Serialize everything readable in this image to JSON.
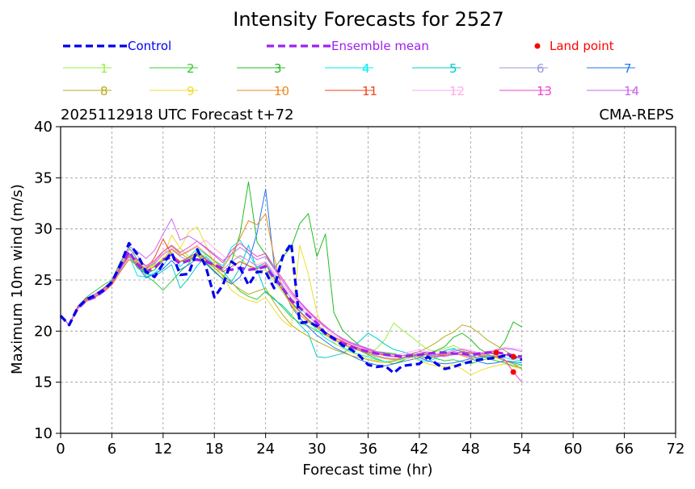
{
  "chart_data": {
    "type": "line",
    "title": "Intensity Forecasts for 2527",
    "subtitle_left": "2025112918 UTC Forecast t+72",
    "subtitle_right": "CMA-REPS",
    "xlabel": "Forecast time (hr)",
    "ylabel": "Maximum 10m wind (m/s)",
    "xlim": [
      0,
      72
    ],
    "ylim": [
      10,
      40
    ],
    "xticks": [
      0,
      6,
      12,
      18,
      24,
      30,
      36,
      42,
      48,
      54,
      60,
      66,
      72
    ],
    "yticks": [
      10,
      15,
      20,
      25,
      30,
      35,
      40
    ],
    "grid": true,
    "legend": {
      "control_label": "Control",
      "mean_label": "Ensemble mean",
      "land_label": "Land point"
    },
    "colors": {
      "control": "#0000ee",
      "mean": "#a020f0",
      "land": "#ff0000"
    },
    "control": {
      "x": [
        0,
        1,
        2,
        3,
        4,
        5,
        6,
        7,
        8,
        9,
        10,
        11,
        12,
        13,
        14,
        15,
        16,
        17,
        18,
        19,
        20,
        21,
        22,
        23,
        24,
        25,
        26,
        27,
        28,
        29,
        30,
        31,
        32,
        33,
        34,
        35,
        36,
        37,
        38,
        39,
        40,
        41,
        42,
        43,
        44,
        45,
        46,
        47,
        48,
        49,
        50,
        51,
        52,
        53,
        54
      ],
      "y": [
        21.5,
        20.6,
        22.3,
        23.1,
        23.5,
        24.0,
        24.8,
        26.5,
        28.6,
        27.5,
        25.8,
        25.3,
        26.6,
        27.7,
        25.5,
        25.6,
        28.0,
        26.3,
        23.3,
        24.5,
        26.8,
        26.2,
        24.5,
        25.8,
        25.8,
        24.2,
        27.3,
        28.6,
        20.8,
        20.9,
        20.5,
        19.8,
        19.3,
        18.6,
        18.2,
        17.6,
        16.7,
        16.5,
        16.6,
        15.9,
        16.6,
        16.7,
        16.8,
        17.5,
        16.8,
        16.3,
        16.5,
        16.8,
        17.0,
        17.2,
        17.3,
        17.4,
        17.6,
        17.5,
        17.2
      ]
    },
    "mean": {
      "x": [
        0,
        1,
        2,
        3,
        4,
        5,
        6,
        7,
        8,
        9,
        10,
        11,
        12,
        13,
        14,
        15,
        16,
        17,
        18,
        19,
        20,
        21,
        22,
        23,
        24,
        25,
        26,
        27,
        28,
        29,
        30,
        31,
        32,
        33,
        34,
        35,
        36,
        37,
        38,
        39,
        40,
        41,
        42,
        43,
        44,
        45,
        46,
        47,
        48,
        49,
        50,
        51,
        52,
        53,
        54
      ],
      "y": [
        21.5,
        20.6,
        22.2,
        23.0,
        23.3,
        23.9,
        24.8,
        26.3,
        27.8,
        26.5,
        25.8,
        26.2,
        27.0,
        27.2,
        26.6,
        26.9,
        27.0,
        26.8,
        26.5,
        26.1,
        26.0,
        26.2,
        26.0,
        26.1,
        26.3,
        25.2,
        24.2,
        23.0,
        22.3,
        21.5,
        20.8,
        19.8,
        19.2,
        18.8,
        18.5,
        18.2,
        18.0,
        17.8,
        17.7,
        17.6,
        17.5,
        17.6,
        17.7,
        17.8,
        17.9,
        17.9,
        17.8,
        17.8,
        17.7,
        17.8,
        17.9,
        17.9,
        17.8,
        17.6,
        17.5
      ]
    },
    "members": [
      {
        "name": "1",
        "color": "#99ee44",
        "y": [
          21.5,
          20.6,
          22.3,
          23.0,
          23.6,
          24.2,
          24.9,
          26.4,
          27.6,
          26.8,
          26.1,
          26.5,
          27.0,
          27.7,
          28.1,
          27.3,
          26.9,
          27.5,
          26.8,
          26.2,
          27.6,
          27.1,
          26.4,
          25.8,
          26.0,
          24.9,
          23.8,
          22.6,
          21.9,
          21.0,
          20.4,
          19.7,
          19.1,
          18.7,
          18.3,
          18.1,
          17.8,
          18.3,
          19.2,
          20.8,
          20.1,
          19.5,
          18.8,
          18.2,
          18.0,
          18.3,
          18.6,
          18.2,
          17.5,
          17.2,
          17.6,
          17.4,
          17.1,
          16.8,
          16.6
        ]
      },
      {
        "name": "2",
        "color": "#33cc33",
        "y": [
          21.5,
          20.6,
          22.4,
          23.3,
          23.9,
          24.5,
          25.0,
          26.8,
          28.2,
          27.0,
          25.4,
          24.8,
          24.0,
          24.9,
          25.8,
          26.6,
          27.9,
          27.1,
          26.2,
          25.4,
          24.8,
          23.9,
          23.4,
          23.1,
          23.9,
          23.2,
          22.3,
          21.4,
          20.8,
          20.5,
          20.0,
          19.6,
          19.2,
          18.8,
          18.4,
          18.1,
          17.7,
          17.3,
          17.0,
          16.8,
          17.1,
          17.5,
          17.8,
          17.6,
          17.3,
          17.1,
          17.2,
          17.0,
          16.8,
          17.1,
          17.3,
          17.1,
          16.9,
          16.6,
          16.4
        ]
      },
      {
        "name": "3",
        "color": "#22bb22",
        "y": [
          21.5,
          20.6,
          22.2,
          23.0,
          23.5,
          24.0,
          24.6,
          26.0,
          27.4,
          26.2,
          25.6,
          26.0,
          26.9,
          27.5,
          26.8,
          27.0,
          27.4,
          26.7,
          25.9,
          25.1,
          26.8,
          29.5,
          34.6,
          28.7,
          27.5,
          26.1,
          27.3,
          28.2,
          30.5,
          31.5,
          27.3,
          29.5,
          21.8,
          20.1,
          19.3,
          18.6,
          18.3,
          18.0,
          17.9,
          17.8,
          17.6,
          17.7,
          17.5,
          17.8,
          18.1,
          18.5,
          19.4,
          19.8,
          19.2,
          18.3,
          17.8,
          17.9,
          19.0,
          20.9,
          20.4
        ]
      },
      {
        "name": "4",
        "color": "#00eeee",
        "y": [
          21.5,
          20.6,
          22.3,
          23.1,
          23.4,
          24.1,
          24.7,
          26.1,
          27.4,
          25.4,
          25.3,
          25.7,
          26.4,
          27.6,
          26.3,
          27.2,
          28.1,
          27.5,
          26.9,
          26.4,
          28.2,
          28.9,
          27.6,
          26.2,
          26.7,
          25.3,
          24.1,
          22.9,
          22.0,
          21.1,
          20.1,
          19.3,
          18.8,
          18.4,
          18.0,
          17.7,
          17.5,
          17.2,
          17.0,
          17.1,
          17.3,
          17.6,
          17.2,
          17.0,
          17.4,
          17.8,
          18.2,
          18.0,
          17.4,
          17.3,
          17.5,
          17.7,
          17.4,
          17.2,
          17.1
        ]
      },
      {
        "name": "5",
        "color": "#00cccc",
        "y": [
          21.5,
          20.6,
          22.2,
          22.9,
          23.3,
          23.8,
          24.5,
          25.9,
          27.2,
          26.5,
          25.6,
          25.4,
          25.9,
          26.5,
          24.2,
          25.2,
          26.4,
          27.3,
          26.5,
          25.9,
          24.8,
          26.2,
          28.4,
          26.0,
          23.8,
          23.1,
          22.5,
          21.6,
          20.6,
          19.8,
          17.5,
          17.4,
          17.6,
          17.8,
          18.4,
          19.0,
          19.8,
          19.3,
          18.7,
          18.2,
          18.0,
          17.7,
          17.6,
          17.4,
          17.7,
          18.1,
          18.3,
          18.0,
          17.6,
          17.4,
          17.6,
          17.5,
          17.1,
          16.9,
          16.7
        ]
      },
      {
        "name": "6",
        "color": "#9999dd",
        "y": [
          21.5,
          20.6,
          22.3,
          23.0,
          23.5,
          24.1,
          24.7,
          26.4,
          28.0,
          27.4,
          26.2,
          26.6,
          27.5,
          28.0,
          27.3,
          26.9,
          27.6,
          27.1,
          26.5,
          26.0,
          26.8,
          27.4,
          26.9,
          26.3,
          26.7,
          25.5,
          24.4,
          23.2,
          22.3,
          21.5,
          20.7,
          19.9,
          19.2,
          18.8,
          18.4,
          18.2,
          17.9,
          17.6,
          17.4,
          17.3,
          17.2,
          17.4,
          17.6,
          17.8,
          17.6,
          17.5,
          17.7,
          17.9,
          17.8,
          17.6,
          17.8,
          18.1,
          17.7,
          17.4,
          17.3
        ]
      },
      {
        "name": "7",
        "color": "#2277ee",
        "y": [
          21.5,
          20.6,
          22.4,
          23.2,
          23.6,
          24.2,
          24.8,
          26.2,
          27.6,
          26.4,
          25.2,
          25.6,
          26.1,
          26.9,
          26.0,
          26.5,
          27.1,
          26.6,
          25.8,
          25.1,
          24.6,
          25.3,
          26.8,
          29.6,
          33.9,
          26.5,
          24.3,
          22.4,
          21.3,
          20.4,
          19.6,
          19.0,
          18.4,
          18.0,
          17.6,
          17.2,
          16.9,
          16.7,
          16.6,
          16.8,
          17.0,
          17.2,
          17.4,
          17.1,
          16.9,
          16.8,
          16.9,
          17.1,
          17.3,
          17.0,
          16.8,
          16.9,
          17.1,
          17.0,
          16.9
        ]
      },
      {
        "name": "8",
        "color": "#bbaa22",
        "y": [
          21.5,
          20.6,
          22.2,
          23.1,
          23.4,
          23.9,
          24.6,
          26.3,
          27.5,
          26.9,
          26.3,
          26.7,
          27.8,
          28.3,
          27.6,
          27.1,
          27.5,
          26.8,
          26.2,
          25.5,
          24.7,
          24.1,
          23.6,
          23.9,
          24.2,
          22.8,
          21.6,
          20.6,
          20.0,
          19.5,
          19.0,
          18.6,
          18.2,
          17.9,
          17.6,
          17.4,
          17.2,
          17.0,
          16.9,
          17.1,
          17.4,
          17.7,
          18.0,
          18.4,
          18.9,
          19.5,
          19.9,
          20.6,
          20.4,
          19.8,
          19.1,
          18.6,
          18.1,
          17.6,
          17.2
        ]
      },
      {
        "name": "9",
        "color": "#eedd33",
        "y": [
          21.5,
          20.6,
          22.3,
          23.0,
          23.5,
          24.0,
          24.7,
          26.1,
          27.3,
          26.6,
          26.0,
          26.4,
          27.2,
          29.4,
          28.1,
          29.7,
          30.2,
          28.4,
          26.6,
          25.3,
          24.0,
          23.4,
          23.0,
          22.8,
          23.3,
          22.1,
          21.0,
          20.4,
          28.4,
          25.6,
          21.8,
          19.7,
          18.9,
          18.3,
          17.9,
          17.6,
          17.3,
          17.1,
          16.9,
          17.0,
          17.2,
          17.4,
          17.1,
          16.8,
          16.6,
          16.5,
          16.7,
          16.3,
          15.7,
          16.1,
          16.4,
          16.6,
          16.8,
          16.5,
          16.3
        ]
      },
      {
        "name": "10",
        "color": "#ee8822",
        "y": [
          21.5,
          20.6,
          22.2,
          22.9,
          23.3,
          23.8,
          24.5,
          25.8,
          27.0,
          26.4,
          25.9,
          26.3,
          27.0,
          28.0,
          27.4,
          27.8,
          28.3,
          27.6,
          26.9,
          26.2,
          27.5,
          29.1,
          30.8,
          30.4,
          31.5,
          27.2,
          24.1,
          22.5,
          21.6,
          20.9,
          20.3,
          19.7,
          19.2,
          18.8,
          18.4,
          18.1,
          17.8,
          17.5,
          17.3,
          17.2,
          17.4,
          17.6,
          17.5,
          17.3,
          17.5,
          17.7,
          17.9,
          17.6,
          17.3,
          17.5,
          17.7,
          17.5,
          17.1,
          16.8,
          16.3
        ]
      },
      {
        "name": "11",
        "color": "#ee4422",
        "y": [
          21.5,
          20.6,
          22.4,
          23.2,
          23.6,
          24.1,
          24.8,
          26.2,
          27.3,
          26.7,
          26.0,
          27.2,
          29.0,
          27.5,
          26.8,
          27.2,
          27.7,
          27.0,
          26.4,
          25.8,
          26.3,
          26.8,
          26.4,
          26.1,
          26.5,
          25.2,
          24.0,
          22.8,
          21.9,
          21.1,
          20.5,
          19.9,
          19.4,
          19.0,
          18.6,
          18.3,
          18.0,
          17.8,
          17.6,
          17.5,
          17.4,
          17.6,
          17.8,
          17.9,
          17.7,
          17.6,
          17.8,
          18.0,
          17.9,
          17.6,
          17.4,
          17.5,
          17.7,
          17.6,
          17.4
        ]
      },
      {
        "name": "12",
        "color": "#ffaaee",
        "y": [
          21.5,
          20.6,
          22.3,
          23.1,
          23.5,
          24.0,
          24.6,
          26.0,
          27.2,
          26.8,
          26.3,
          26.8,
          27.6,
          28.1,
          27.5,
          27.9,
          28.4,
          28.9,
          28.1,
          27.4,
          26.8,
          27.3,
          26.9,
          26.5,
          26.8,
          25.7,
          24.6,
          23.5,
          22.6,
          21.8,
          21.0,
          20.3,
          19.6,
          19.1,
          18.7,
          18.4,
          18.1,
          17.9,
          17.7,
          17.6,
          17.8,
          18.0,
          18.2,
          18.0,
          17.8,
          17.9,
          18.1,
          18.3,
          18.1,
          17.9,
          18.0,
          18.2,
          18.4,
          18.3,
          18.2
        ]
      },
      {
        "name": "13",
        "color": "#ee44cc",
        "y": [
          21.5,
          20.6,
          22.2,
          23.0,
          23.4,
          23.9,
          24.6,
          26.1,
          27.5,
          27.0,
          26.4,
          26.9,
          27.8,
          28.4,
          27.7,
          28.2,
          28.8,
          28.1,
          27.4,
          26.7,
          27.9,
          28.6,
          27.9,
          27.3,
          27.6,
          26.3,
          25.1,
          23.9,
          22.9,
          22.0,
          21.2,
          20.5,
          19.8,
          19.2,
          18.8,
          18.5,
          18.2,
          17.9,
          17.7,
          17.5,
          17.4,
          17.6,
          17.8,
          17.7,
          17.5,
          17.6,
          17.8,
          17.7,
          17.5,
          17.7,
          17.9,
          17.7,
          17.2,
          16.0,
          15.0
        ]
      },
      {
        "name": "14",
        "color": "#cc66ee",
        "y": [
          21.5,
          20.6,
          22.3,
          23.1,
          23.6,
          24.2,
          24.9,
          26.6,
          28.3,
          27.8,
          27.1,
          27.9,
          29.5,
          31.0,
          28.9,
          29.3,
          28.8,
          28.2,
          27.5,
          26.9,
          27.5,
          28.2,
          27.6,
          27.0,
          27.3,
          26.1,
          24.9,
          23.7,
          22.8,
          21.9,
          21.1,
          20.4,
          19.8,
          19.3,
          18.9,
          18.6,
          18.3,
          18.0,
          17.8,
          17.7,
          17.6,
          17.8,
          18.0,
          17.9,
          17.7,
          17.8,
          18.0,
          18.2,
          18.0,
          17.8,
          17.9,
          18.1,
          18.3,
          18.2,
          18.0
        ]
      }
    ],
    "land_points": [
      {
        "x": 51,
        "y": 17.9
      },
      {
        "x": 53,
        "y": 17.5
      },
      {
        "x": 53,
        "y": 16.0
      }
    ]
  }
}
